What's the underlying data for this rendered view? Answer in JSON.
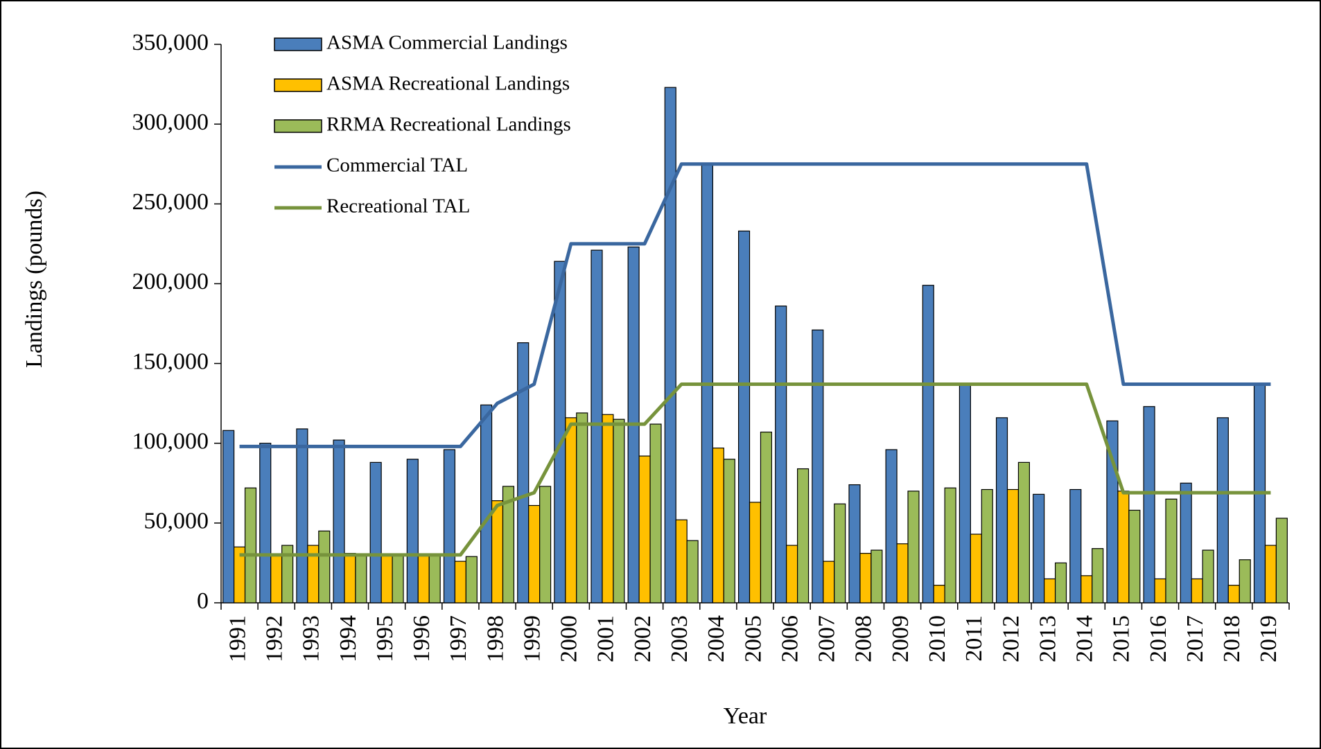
{
  "chart_data": {
    "type": "bar",
    "x_label": "Year",
    "y_label": "Landings  (pounds)",
    "categories": [
      "1991",
      "1992",
      "1993",
      "1994",
      "1995",
      "1996",
      "1997",
      "1998",
      "1999",
      "2000",
      "2001",
      "2002",
      "2003",
      "2004",
      "2005",
      "2006",
      "2007",
      "2008",
      "2009",
      "2010",
      "2011",
      "2012",
      "2013",
      "2014",
      "2015",
      "2016",
      "2017",
      "2018",
      "2019"
    ],
    "ylim": [
      0,
      350000
    ],
    "yticks": [
      0,
      {
        "value": 50000,
        "label": "50,000"
      },
      {
        "value": 100000,
        "label": "100,000"
      },
      {
        "value": 150000,
        "label": "150,000"
      },
      {
        "value": 200000,
        "label": "200,000"
      },
      {
        "value": 250000,
        "label": "250,000"
      },
      {
        "value": 300000,
        "label": "300,000"
      },
      {
        "value": 350000,
        "label": "350,000"
      }
    ],
    "grid": false,
    "legend": "upper left",
    "series": [
      {
        "name": "ASMA Commercial Landings",
        "type": "bar",
        "color": "#4a7ebb",
        "values": [
          108000,
          100000,
          109000,
          102000,
          88000,
          90000,
          96000,
          124000,
          163000,
          214000,
          221000,
          223000,
          323000,
          275000,
          233000,
          186000,
          171000,
          74000,
          96000,
          199000,
          137000,
          116000,
          68000,
          71000,
          114000,
          123000,
          75000,
          116000,
          137000
        ]
      },
      {
        "name": "ASMA Recreational Landings",
        "type": "bar",
        "color": "#ffc000",
        "values": [
          35000,
          30000,
          36000,
          31000,
          30000,
          30000,
          26000,
          64000,
          61000,
          116000,
          118000,
          92000,
          52000,
          97000,
          63000,
          36000,
          26000,
          31000,
          37000,
          11000,
          43000,
          71000,
          15000,
          17000,
          70000,
          15000,
          15000,
          11000,
          36000
        ]
      },
      {
        "name": "RRMA Recreational Landings",
        "type": "bar",
        "color": "#9bbb59",
        "values": [
          72000,
          36000,
          45000,
          30000,
          30000,
          30000,
          29000,
          73000,
          73000,
          119000,
          115000,
          112000,
          39000,
          90000,
          107000,
          84000,
          62000,
          33000,
          70000,
          72000,
          71000,
          88000,
          25000,
          34000,
          58000,
          65000,
          33000,
          27000,
          53000
        ]
      },
      {
        "name": "Commercial TAL",
        "type": "line",
        "color": "#3a679f",
        "values": [
          98000,
          98000,
          98000,
          98000,
          98000,
          98000,
          98000,
          125000,
          137000,
          225000,
          225000,
          225000,
          275000,
          275000,
          275000,
          275000,
          275000,
          275000,
          275000,
          275000,
          275000,
          275000,
          275000,
          275000,
          137000,
          137000,
          137000,
          137000,
          137000
        ]
      },
      {
        "name": "Recreational TAL",
        "type": "line",
        "color": "#77933c",
        "values": [
          30000,
          30000,
          30000,
          30000,
          30000,
          30000,
          30000,
          61000,
          69000,
          112000,
          112000,
          112000,
          137000,
          137000,
          137000,
          137000,
          137000,
          137000,
          137000,
          137000,
          137000,
          137000,
          137000,
          137000,
          69000,
          69000,
          69000,
          69000,
          69000
        ]
      }
    ]
  }
}
